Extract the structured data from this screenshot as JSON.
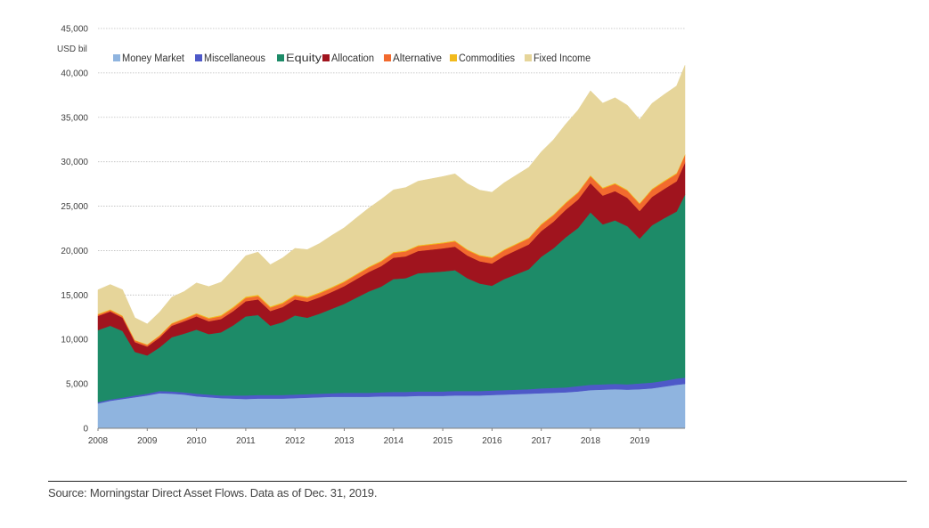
{
  "chart_data": {
    "type": "area",
    "stacked": true,
    "unit_label": "USD bil",
    "x_start_year": 2008,
    "x_end_year": 2019.92,
    "x_tick_labels": [
      "2008",
      "2009",
      "2010",
      "2011",
      "2012",
      "2013",
      "2014",
      "2015",
      "2016",
      "2017",
      "2018",
      "2019"
    ],
    "y_tick_labels": [
      "0",
      "5,000",
      "10,000",
      "15,000",
      "20,000",
      "25,000",
      "30,000",
      "35,000",
      "40,000",
      "45,000"
    ],
    "ylim": [
      0,
      45000
    ],
    "grid": true,
    "legend_position": "top-left",
    "x": [
      2008.0,
      2008.25,
      2008.5,
      2008.75,
      2009.0,
      2009.25,
      2009.5,
      2009.75,
      2010.0,
      2010.25,
      2010.5,
      2010.75,
      2011.0,
      2011.25,
      2011.5,
      2011.75,
      2012.0,
      2012.25,
      2012.5,
      2012.75,
      2013.0,
      2013.25,
      2013.5,
      2013.75,
      2014.0,
      2014.25,
      2014.5,
      2014.75,
      2015.0,
      2015.25,
      2015.5,
      2015.75,
      2016.0,
      2016.25,
      2016.5,
      2016.75,
      2017.0,
      2017.25,
      2017.5,
      2017.75,
      2018.0,
      2018.25,
      2018.5,
      2018.75,
      2019.0,
      2019.25,
      2019.5,
      2019.75,
      2019.92
    ],
    "series": [
      {
        "name": "Money Market",
        "color": "#8FB4DF",
        "values": [
          2800,
          3100,
          3300,
          3500,
          3700,
          3950,
          3900,
          3800,
          3600,
          3500,
          3400,
          3350,
          3300,
          3350,
          3350,
          3350,
          3400,
          3450,
          3500,
          3550,
          3550,
          3550,
          3550,
          3600,
          3600,
          3600,
          3650,
          3650,
          3650,
          3700,
          3700,
          3700,
          3750,
          3800,
          3850,
          3900,
          3950,
          4000,
          4050,
          4150,
          4300,
          4350,
          4400,
          4350,
          4400,
          4500,
          4700,
          4900,
          5000
        ]
      },
      {
        "name": "Miscellaneous",
        "color": "#4E59C8",
        "values": [
          150,
          150,
          150,
          200,
          200,
          250,
          250,
          250,
          300,
          300,
          300,
          350,
          400,
          400,
          400,
          400,
          400,
          400,
          400,
          400,
          450,
          450,
          450,
          450,
          500,
          500,
          500,
          500,
          500,
          500,
          500,
          500,
          500,
          500,
          500,
          500,
          550,
          550,
          550,
          600,
          600,
          600,
          600,
          600,
          650,
          650,
          650,
          700,
          700
        ]
      },
      {
        "name": "Equity",
        "color": "#1D8B68",
        "values": [
          8100,
          8300,
          7500,
          4900,
          4300,
          4900,
          6100,
          6600,
          7200,
          6800,
          7100,
          7900,
          8900,
          9000,
          7800,
          8200,
          8900,
          8600,
          9000,
          9500,
          10000,
          10700,
          11400,
          11900,
          12700,
          12800,
          13300,
          13400,
          13500,
          13600,
          12700,
          12100,
          11800,
          12500,
          13000,
          13500,
          14800,
          15700,
          16900,
          17800,
          19400,
          18000,
          18400,
          17800,
          16300,
          17700,
          18300,
          18800,
          20600
        ]
      },
      {
        "name": "Allocation",
        "color": "#A0141E",
        "values": [
          1600,
          1600,
          1500,
          1100,
          1000,
          1100,
          1300,
          1400,
          1500,
          1450,
          1500,
          1600,
          1700,
          1750,
          1650,
          1700,
          1800,
          1800,
          1850,
          1900,
          2000,
          2100,
          2200,
          2300,
          2400,
          2450,
          2500,
          2550,
          2600,
          2650,
          2550,
          2500,
          2500,
          2600,
          2700,
          2800,
          2900,
          3000,
          3100,
          3200,
          3300,
          3250,
          3300,
          3200,
          3100,
          3200,
          3300,
          3400,
          3600
        ]
      },
      {
        "name": "Alternative",
        "color": "#F26A2E",
        "values": [
          150,
          160,
          170,
          180,
          190,
          200,
          230,
          250,
          270,
          300,
          330,
          360,
          380,
          390,
          390,
          400,
          420,
          430,
          440,
          450,
          460,
          480,
          500,
          520,
          540,
          550,
          560,
          570,
          580,
          590,
          600,
          610,
          620,
          640,
          660,
          680,
          700,
          720,
          740,
          760,
          780,
          790,
          800,
          800,
          800,
          810,
          820,
          830,
          850
        ]
      },
      {
        "name": "Commodities",
        "color": "#F2BA1C",
        "values": [
          80,
          80,
          70,
          60,
          60,
          70,
          80,
          90,
          100,
          110,
          120,
          130,
          140,
          140,
          130,
          130,
          130,
          130,
          120,
          120,
          110,
          110,
          100,
          100,
          100,
          100,
          100,
          100,
          100,
          100,
          100,
          100,
          100,
          100,
          100,
          100,
          110,
          110,
          110,
          110,
          110,
          110,
          110,
          110,
          110,
          110,
          110,
          110,
          110
        ]
      },
      {
        "name": "Fixed Income",
        "color": "#E6D59A",
        "values": [
          2700,
          2800,
          2900,
          2500,
          2300,
          2600,
          2900,
          3000,
          3400,
          3500,
          3700,
          4200,
          4600,
          4800,
          4700,
          5000,
          5200,
          5300,
          5500,
          5800,
          6000,
          6300,
          6600,
          6900,
          7000,
          7100,
          7200,
          7300,
          7400,
          7500,
          7400,
          7300,
          7300,
          7500,
          7700,
          7900,
          8100,
          8400,
          8800,
          9200,
          9500,
          9500,
          9600,
          9500,
          9400,
          9600,
          9700,
          9800,
          10000
        ]
      }
    ]
  },
  "source_note": "Source: Morningstar Direct Asset Flows. Data as of Dec. 31, 2019."
}
